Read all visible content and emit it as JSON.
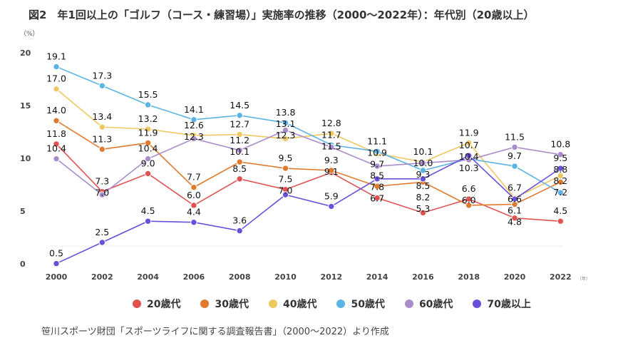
{
  "title": "図2　年1回以上の「ゴルフ（コース・練習場）」実施率の推移（2000～2022年）：年代別（20歳以上）",
  "source": "笹川スポーツ財団「スポーツライフに関する調査報告書」（2000～2022）より作成",
  "chart_data": {
    "type": "line",
    "title": "図2　年1回以上の「ゴルフ（コース・練習場）」実施率の推移（2000～2022年）：年代別（20歳以上）",
    "ylabel": "（%）",
    "xlabel": "（年）",
    "ylim": [
      0,
      20
    ],
    "yticks": [
      "0",
      "5",
      "10",
      "15",
      "20"
    ],
    "categories": [
      "2000",
      "2002",
      "2004",
      "2006",
      "2008",
      "2010",
      "2012",
      "2014",
      "2016",
      "2018",
      "2020",
      "2022"
    ],
    "legend": "bottom",
    "grid": false,
    "series": [
      {
        "name": "20歳代",
        "color": "#e05252",
        "values": [
          11.8,
          7.3,
          9.0,
          6.0,
          8.5,
          7.5,
          9.1,
          6.7,
          5.3,
          6.6,
          4.8,
          4.5
        ]
      },
      {
        "name": "30歳代",
        "color": "#e07b2e",
        "values": [
          14.0,
          11.3,
          11.9,
          7.7,
          10.1,
          9.5,
          9.3,
          7.8,
          8.2,
          6.0,
          6.1,
          8.2
        ]
      },
      {
        "name": "40歳代",
        "color": "#f0c862",
        "values": [
          17.0,
          13.4,
          13.2,
          12.6,
          12.7,
          12.3,
          12.8,
          10.9,
          10.1,
          11.9,
          6.7,
          8.8
        ]
      },
      {
        "name": "50歳代",
        "color": "#5cb4e4",
        "values": [
          19.1,
          17.3,
          15.5,
          14.1,
          14.5,
          13.8,
          11.7,
          11.1,
          9.3,
          10.4,
          9.7,
          7.2
        ]
      },
      {
        "name": "60歳代",
        "color": "#a98dcb",
        "values": [
          10.4,
          7.0,
          10.4,
          12.3,
          11.2,
          13.1,
          11.5,
          9.7,
          10.0,
          10.3,
          11.5,
          10.8
        ]
      },
      {
        "name": "70歳以上",
        "color": "#6a4fdc",
        "values": [
          0.5,
          2.5,
          4.5,
          4.4,
          3.6,
          7.0,
          5.9,
          8.5,
          8.5,
          10.7,
          6.6,
          9.5
        ]
      }
    ]
  }
}
